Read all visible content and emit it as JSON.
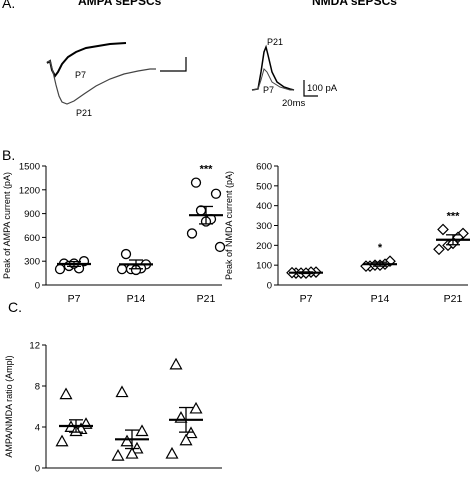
{
  "panels": {
    "a": {
      "letter": "A.",
      "ampa_header": "AMPA sEPSCs",
      "nmda_header": "NMDA sEPSCs",
      "ampa_trace_labels": [
        "P7",
        "P21"
      ],
      "nmda_trace_labels": [
        "P21",
        "P7"
      ],
      "scale_current": "100 pA",
      "scale_time": "20ms"
    },
    "b": {
      "letter": "B."
    },
    "c": {
      "letter": "C."
    }
  },
  "chart_data": [
    {
      "type": "scatter",
      "panel": "B-left",
      "title": "",
      "xlabel": "",
      "ylabel": "Peak of AMPA current (pA)",
      "categories": [
        "P7",
        "P14",
        "P21"
      ],
      "ylim": [
        0,
        1500
      ],
      "yticks": [
        0,
        300,
        600,
        900,
        1200,
        1500
      ],
      "marker": "circle",
      "points": [
        [
          270,
          300,
          240,
          210,
          270,
          200
        ],
        [
          390,
          260,
          200,
          210,
          190,
          200
        ],
        [
          1290,
          1150,
          940,
          830,
          800,
          650,
          480
        ]
      ],
      "mean": [
        265,
        260,
        880
      ],
      "sem": [
        30,
        55,
        110
      ],
      "significance": [
        "",
        "",
        "***"
      ],
      "grid": false
    },
    {
      "type": "scatter",
      "panel": "B-right",
      "title": "",
      "xlabel": "",
      "ylabel": "Peak of NMDA current (pA)",
      "categories": [
        "P7",
        "P14",
        "P21"
      ],
      "ylim": [
        0,
        600
      ],
      "yticks": [
        0,
        100,
        200,
        300,
        400,
        500,
        600
      ],
      "marker": "diamond",
      "points": [
        [
          60,
          65,
          60,
          65,
          60,
          62
        ],
        [
          95,
          120,
          100,
          105,
          100,
          95
        ],
        [
          280,
          260,
          200,
          240,
          210,
          180
        ]
      ],
      "mean": [
        62,
        105,
        228
      ],
      "sem": [
        4,
        10,
        25
      ],
      "significance": [
        "",
        "*",
        "***"
      ],
      "grid": false
    },
    {
      "type": "scatter",
      "panel": "C",
      "title": "",
      "xlabel": "",
      "ylabel": "AMPA/NMDA ratio (Ampl)",
      "categories": [
        "",
        "",
        ""
      ],
      "ylim": [
        0,
        12
      ],
      "yticks": [
        0,
        4,
        8,
        12
      ],
      "marker": "triangle",
      "points": [
        [
          7.2,
          4.3,
          4.0,
          3.8,
          3.6,
          2.6
        ],
        [
          7.4,
          3.6,
          2.6,
          1.9,
          1.4,
          1.2
        ],
        [
          10.1,
          5.8,
          4.9,
          3.4,
          2.7,
          1.4
        ]
      ],
      "mean": [
        4.1,
        2.8,
        4.7
      ],
      "sem": [
        0.6,
        0.9,
        1.2
      ],
      "significance": [
        "",
        "",
        ""
      ],
      "grid": false
    }
  ]
}
